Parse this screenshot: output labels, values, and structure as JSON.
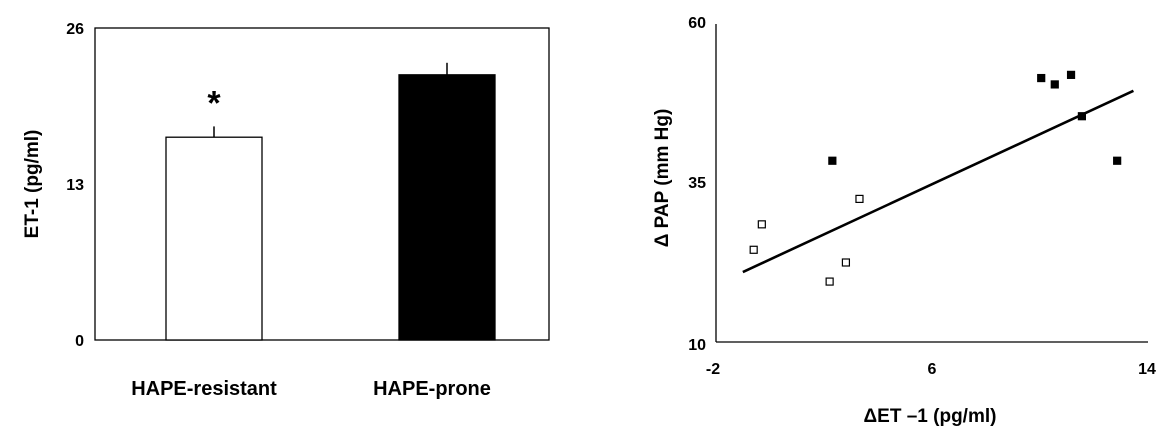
{
  "chart_data": [
    {
      "type": "bar",
      "xlabel": "",
      "ylabel": "ET-1  (pg/ml)",
      "ylim": [
        0,
        26
      ],
      "yticks": [
        "0",
        "13",
        "26"
      ],
      "categories": [
        "HAPE-resistant",
        "HAPE-prone"
      ],
      "values": [
        16.9,
        22.1
      ],
      "errors": [
        0.9,
        1.0
      ],
      "bar_colors": [
        "#ffffff",
        "#000000"
      ],
      "annotations": [
        {
          "category": "HAPE-resistant",
          "text": "*"
        }
      ],
      "grid": false,
      "legend": "none"
    },
    {
      "type": "scatter",
      "xlabel": "ΔET –1  (pg/ml)",
      "ylabel": "Δ PAP (mm Hg)",
      "xlim": [
        -2,
        14
      ],
      "ylim": [
        10,
        60
      ],
      "xticks": [
        "-2",
        "6",
        "14"
      ],
      "yticks": [
        "10",
        "35",
        "60"
      ],
      "series": [
        {
          "marker": "open-square",
          "x": [
            -0.5,
            -0.2,
            2.3,
            2.9,
            3.4
          ],
          "y": [
            24.5,
            28.5,
            19.5,
            22.5,
            32.5
          ]
        },
        {
          "marker": "filled-square",
          "x": [
            2.4,
            10.1,
            10.6,
            11.2,
            11.6,
            12.9
          ],
          "y": [
            38.5,
            51.5,
            50.5,
            52.0,
            45.5,
            38.5
          ]
        }
      ],
      "trendline": {
        "x": [
          -0.9,
          13.5
        ],
        "y": [
          21.0,
          49.5
        ]
      },
      "grid": false,
      "legend": "none"
    }
  ]
}
